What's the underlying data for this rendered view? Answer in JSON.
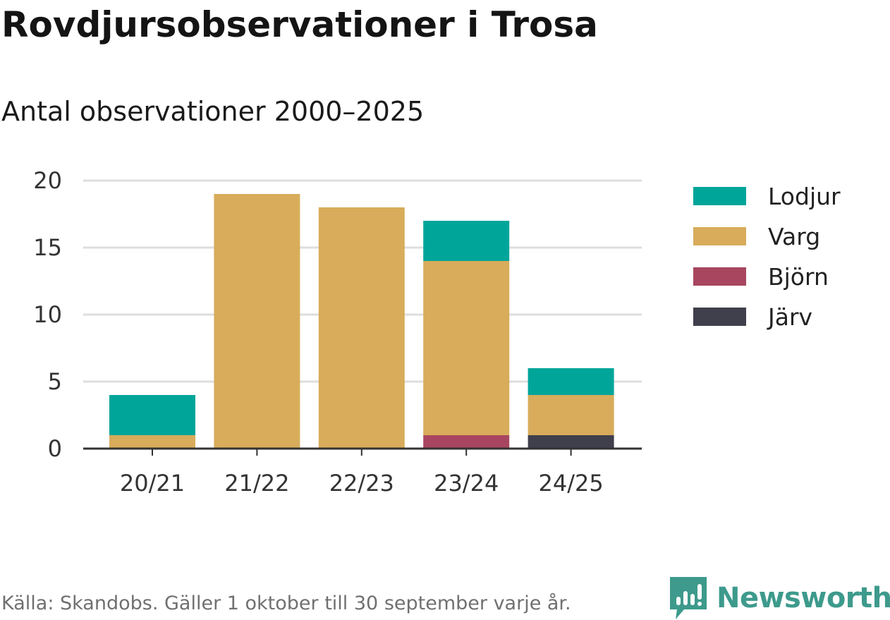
{
  "title": "Rovdjursobservationer i Trosa",
  "subtitle": "Antal observationer 2000–2025",
  "source": "Källa: Skandobs. Gäller 1 oktober till 30 september varje år.",
  "brand": {
    "name": "Newsworthy",
    "icon": "newsworthy-logo-icon",
    "color": "#3d9a8c"
  },
  "chart_data": {
    "type": "bar",
    "stacked": true,
    "categories": [
      "20/21",
      "21/22",
      "22/23",
      "23/24",
      "24/25"
    ],
    "series": [
      {
        "name": "Järv",
        "color": "#403f4c",
        "values": [
          0,
          0,
          0,
          0,
          1
        ]
      },
      {
        "name": "Björn",
        "color": "#a8465f",
        "values": [
          0,
          0,
          0,
          1,
          0
        ]
      },
      {
        "name": "Varg",
        "color": "#d8ac5b",
        "values": [
          1,
          19,
          18,
          13,
          3
        ]
      },
      {
        "name": "Lodjur",
        "color": "#00a59a",
        "values": [
          3,
          0,
          0,
          3,
          2
        ]
      }
    ],
    "legend_order": [
      "Lodjur",
      "Varg",
      "Björn",
      "Järv"
    ],
    "yticks": [
      0,
      5,
      10,
      15,
      20
    ],
    "ylim": [
      0,
      20
    ],
    "grid": true,
    "legend_position": "right",
    "xlabel": "",
    "ylabel": ""
  }
}
